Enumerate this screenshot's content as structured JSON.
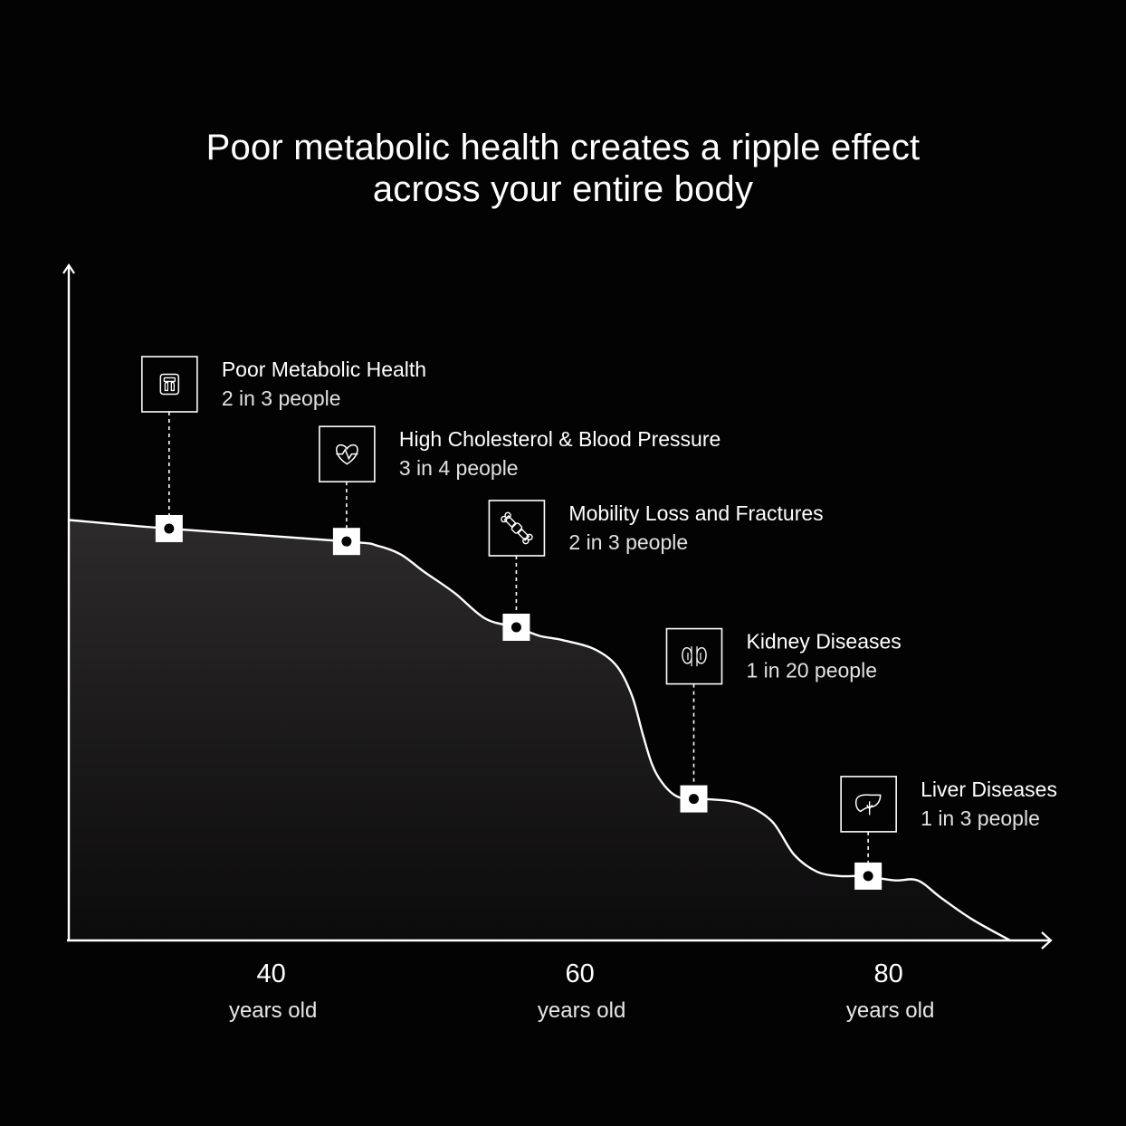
{
  "title": {
    "line1": "Poor metabolic health creates a ripple effect",
    "line2": "across your entire body"
  },
  "colors": {
    "background": "#040304",
    "line": "#ffffff",
    "fill_top": "#2c2a2b",
    "fill_bottom": "#0c0b0c"
  },
  "chart_data": {
    "type": "area",
    "title": "Poor metabolic health creates a ripple effect across your entire body",
    "xlabel": "years old",
    "ylabel": "",
    "xlim": [
      27,
      88
    ],
    "ylim": [
      0,
      1
    ],
    "x_ticks": [
      {
        "value": 40,
        "label": "40",
        "unit": "years old"
      },
      {
        "value": 60,
        "label": "60",
        "unit": "years old"
      },
      {
        "value": 80,
        "label": "80",
        "unit": "years old"
      }
    ],
    "curve": {
      "x": [
        27,
        33.5,
        45,
        47,
        48.5,
        50,
        52,
        54,
        56,
        57.5,
        59,
        61,
        62.5,
        63.5,
        64.2,
        64.8,
        65.4,
        66.2,
        67,
        68,
        70.5,
        72.5,
        74,
        75.5,
        77,
        78.5,
        80.5,
        82,
        83.5,
        85.5,
        88
      ],
      "y": [
        0.98,
        0.96,
        0.93,
        0.92,
        0.9,
        0.86,
        0.81,
        0.75,
        0.73,
        0.71,
        0.7,
        0.68,
        0.64,
        0.57,
        0.48,
        0.41,
        0.37,
        0.34,
        0.33,
        0.33,
        0.32,
        0.28,
        0.2,
        0.16,
        0.15,
        0.15,
        0.14,
        0.14,
        0.1,
        0.05,
        0.0
      ]
    },
    "annotations": [
      {
        "x": 33.5,
        "y": 0.96,
        "icon": "scale-icon",
        "label": "Poor Metabolic Health",
        "sub": "2 in 3 people"
      },
      {
        "x": 45.0,
        "y": 0.93,
        "icon": "heart-pulse-icon",
        "label": "High Cholesterol & Blood Pressure",
        "sub": "3 in 4 people"
      },
      {
        "x": 56.0,
        "y": 0.73,
        "icon": "joint-bone-icon",
        "label": "Mobility Loss and Fractures",
        "sub": "2 in 3 people"
      },
      {
        "x": 67.5,
        "y": 0.33,
        "icon": "kidney-icon",
        "label": "Kidney Diseases",
        "sub": "1 in 20 people"
      },
      {
        "x": 78.8,
        "y": 0.15,
        "icon": "liver-icon",
        "label": "Liver Diseases",
        "sub": "1 in 3 people"
      }
    ],
    "grid": false,
    "legend": "none"
  }
}
